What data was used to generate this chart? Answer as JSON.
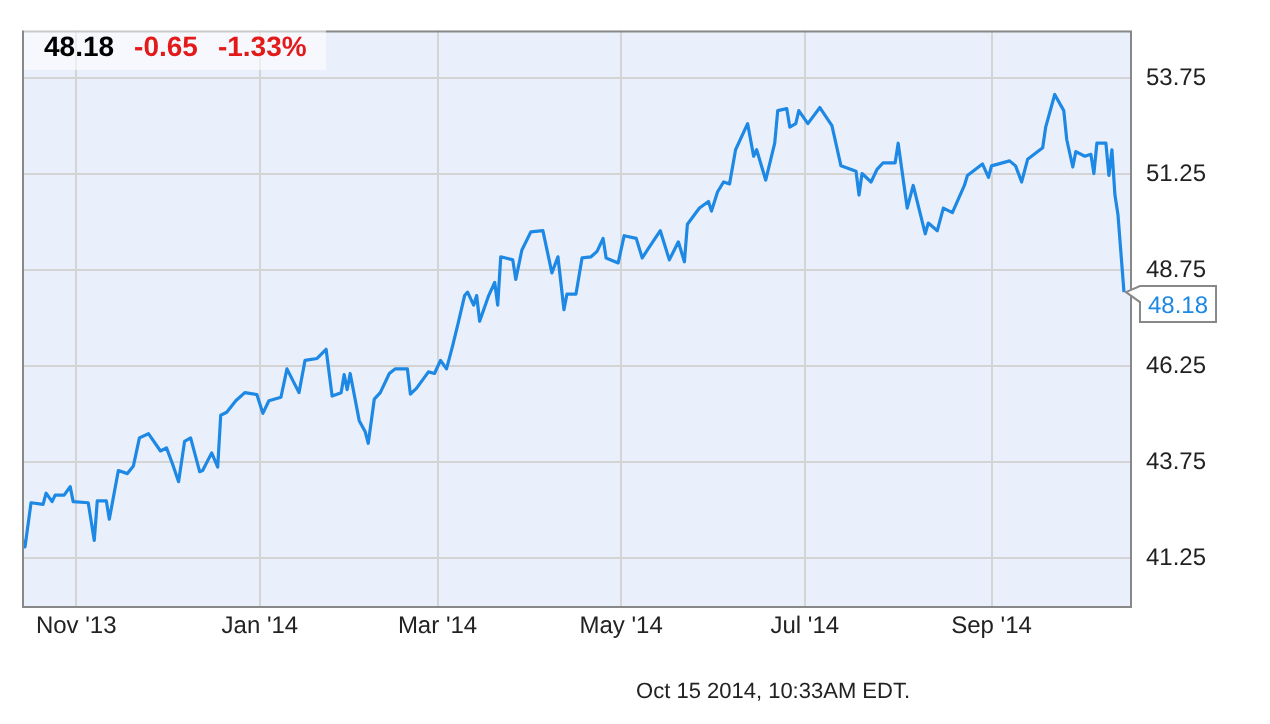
{
  "chart_data": {
    "type": "line",
    "x": [
      "2013-10-14",
      "2013-10-15",
      "2013-10-17",
      "2013-10-21",
      "2013-10-22",
      "2013-10-24",
      "2013-10-25",
      "2013-10-28",
      "2013-10-30",
      "2013-10-31",
      "2013-11-05",
      "2013-11-07",
      "2013-11-08",
      "2013-11-11",
      "2013-11-12",
      "2013-11-15",
      "2013-11-18",
      "2013-11-20",
      "2013-11-22",
      "2013-11-25",
      "2013-11-29",
      "2013-12-01",
      "2013-12-03",
      "2013-12-05",
      "2013-12-07",
      "2013-12-09",
      "2013-12-12",
      "2013-12-13",
      "2013-12-16",
      "2013-12-18",
      "2013-12-19",
      "2013-12-21",
      "2013-12-24",
      "2013-12-27",
      "2013-12-31",
      "2014-01-02",
      "2014-01-04",
      "2014-01-08",
      "2014-01-10",
      "2014-01-14",
      "2014-01-16",
      "2014-01-20",
      "2014-01-23",
      "2014-01-25",
      "2014-01-28",
      "2014-01-29",
      "2014-01-30",
      "2014-01-31",
      "2014-02-03",
      "2014-02-05",
      "2014-02-06",
      "2014-02-08",
      "2014-02-10",
      "2014-02-13",
      "2014-02-15",
      "2014-02-19",
      "2014-02-20",
      "2014-02-22",
      "2014-02-26",
      "2014-02-28",
      "2014-03-02",
      "2014-03-04",
      "2014-03-06",
      "2014-03-08",
      "2014-03-10",
      "2014-03-11",
      "2014-03-13",
      "2014-03-14",
      "2014-03-15",
      "2014-03-18",
      "2014-03-20",
      "2014-03-21",
      "2014-03-22",
      "2014-03-26",
      "2014-03-27",
      "2014-03-29",
      "2014-04-01",
      "2014-04-05",
      "2014-04-08",
      "2014-04-10",
      "2014-04-12",
      "2014-04-13",
      "2014-04-16",
      "2014-04-18",
      "2014-04-21",
      "2014-04-23",
      "2014-04-25",
      "2014-04-26",
      "2014-04-30",
      "2014-05-02",
      "2014-05-06",
      "2014-05-08",
      "2014-05-10",
      "2014-05-14",
      "2014-05-17",
      "2014-05-20",
      "2014-05-22",
      "2014-05-23",
      "2014-05-27",
      "2014-05-30",
      "2014-05-31",
      "2014-06-02",
      "2014-06-04",
      "2014-06-06",
      "2014-06-08",
      "2014-06-12",
      "2014-06-14",
      "2014-06-15",
      "2014-06-18",
      "2014-06-21",
      "2014-06-22",
      "2014-06-25",
      "2014-06-26",
      "2014-06-28",
      "2014-06-29",
      "2014-07-02",
      "2014-07-06",
      "2014-07-10",
      "2014-07-13",
      "2014-07-18",
      "2014-07-19",
      "2014-07-20",
      "2014-07-23",
      "2014-07-25",
      "2014-07-27",
      "2014-07-31",
      "2014-08-01",
      "2014-08-04",
      "2014-08-06",
      "2014-08-10",
      "2014-08-11",
      "2014-08-14",
      "2014-08-16",
      "2014-08-19",
      "2014-08-23",
      "2014-08-24",
      "2014-08-29",
      "2014-08-31",
      "2014-09-01",
      "2014-09-07",
      "2014-09-09",
      "2014-09-11",
      "2014-09-13",
      "2014-09-18",
      "2014-09-19",
      "2014-09-22",
      "2014-09-25",
      "2014-09-26",
      "2014-09-28",
      "2014-09-29",
      "2014-10-02",
      "2014-10-04",
      "2014-10-05",
      "2014-10-06",
      "2014-10-09",
      "2014-10-10",
      "2014-10-11",
      "2014-10-12",
      "2014-10-13",
      "2014-10-15"
    ],
    "series": [
      {
        "color": "#1e88e5",
        "values": [
          41.76,
          41.54,
          42.69,
          42.65,
          42.94,
          42.72,
          42.89,
          42.89,
          43.11,
          42.72,
          42.69,
          41.71,
          42.74,
          42.74,
          42.26,
          43.53,
          43.45,
          43.65,
          44.38,
          44.49,
          44.04,
          44.12,
          43.7,
          43.24,
          44.29,
          44.38,
          43.5,
          43.53,
          43.99,
          43.62,
          44.97,
          45.05,
          45.35,
          45.56,
          45.51,
          45.02,
          45.35,
          45.44,
          46.18,
          45.56,
          46.4,
          46.45,
          46.69,
          45.47,
          45.56,
          46.03,
          45.64,
          46.06,
          44.83,
          44.54,
          44.24,
          45.39,
          45.56,
          46.06,
          46.18,
          46.18,
          45.52,
          45.67,
          46.1,
          46.06,
          46.4,
          46.18,
          46.77,
          47.42,
          48.09,
          48.18,
          47.84,
          48.09,
          47.42,
          48.09,
          48.43,
          47.84,
          49.1,
          49.02,
          48.51,
          49.27,
          49.75,
          49.78,
          48.68,
          49.1,
          47.72,
          48.13,
          48.13,
          49.07,
          49.1,
          49.24,
          49.58,
          49.07,
          48.94,
          49.65,
          49.58,
          49.07,
          49.31,
          49.78,
          49.02,
          49.49,
          48.97,
          49.95,
          50.37,
          50.54,
          50.29,
          50.79,
          51.05,
          51.0,
          51.89,
          52.57,
          51.72,
          51.89,
          51.1,
          52.06,
          52.91,
          52.96,
          52.48,
          52.57,
          52.91,
          52.57,
          52.99,
          52.52,
          51.47,
          51.33,
          50.71,
          51.27,
          51.05,
          51.38,
          51.55,
          51.55,
          52.06,
          50.37,
          50.96,
          49.7,
          49.98,
          49.78,
          50.37,
          50.25,
          50.96,
          51.22,
          51.52,
          51.17,
          51.47,
          51.6,
          51.47,
          51.05,
          51.64,
          51.94,
          52.48,
          53.33,
          52.91,
          52.15,
          51.44,
          51.84,
          51.72,
          51.77,
          51.27,
          52.06,
          52.06,
          51.22,
          51.89,
          50.71,
          50.2,
          48.18
        ]
      }
    ],
    "xlim": [
      "2013-10-14",
      "2014-10-17"
    ],
    "xticks": [
      {
        "value": "2013-11-01",
        "label": "Nov '13"
      },
      {
        "value": "2014-01-01",
        "label": "Jan '14"
      },
      {
        "value": "2014-03-01",
        "label": "Mar '14"
      },
      {
        "value": "2014-05-01",
        "label": "May '14"
      },
      {
        "value": "2014-07-01",
        "label": "Jul '14"
      },
      {
        "value": "2014-09-01",
        "label": "Sep '14"
      }
    ],
    "ylim": [
      40,
      55
    ],
    "yticks": [
      41.25,
      43.75,
      46.25,
      48.75,
      51.25,
      53.75
    ],
    "grid": true,
    "legend": false,
    "marker": "none",
    "line_style": "solid",
    "annotations": [
      "48.18",
      "-0.65",
      "-1.33%",
      {
        "text": "48.18",
        "x": "2014-10-15",
        "y": 48.18
      },
      "Oct 15 2014, 10:33AM EDT."
    ]
  }
}
